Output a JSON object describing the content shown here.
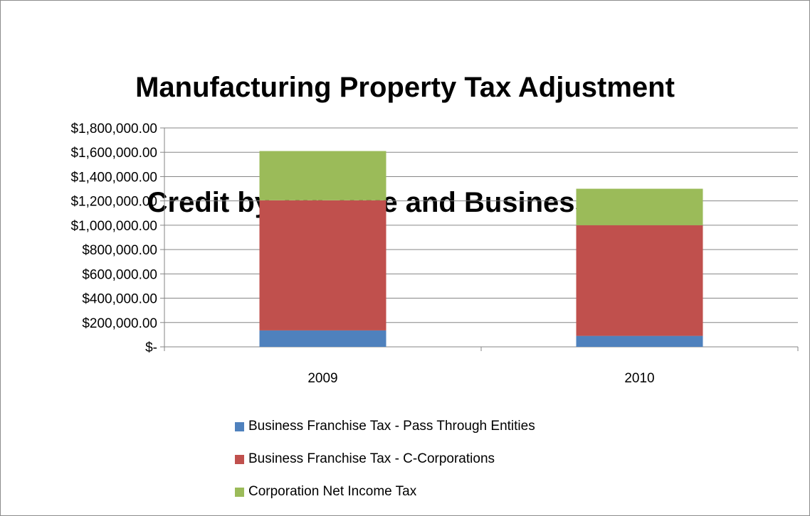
{
  "chart_data": {
    "type": "bar",
    "stacked": true,
    "title": "Manufacturing Property Tax Adjustment Credit by Tax Type and Business Type",
    "title_lines": [
      "Manufacturing Property Tax Adjustment",
      "Credit by Tax Type and Business Type"
    ],
    "categories": [
      "2009",
      "2010"
    ],
    "series": [
      {
        "name": "Business Franchise Tax - Pass Through Entities",
        "color": "#4f81bd",
        "values": [
          135000,
          90000
        ]
      },
      {
        "name": "Business Franchise Tax - C-Corporations",
        "color": "#c0504d",
        "values": [
          1070000,
          910000
        ]
      },
      {
        "name": "Corporation Net Income Tax",
        "color": "#9bbb59",
        "values": [
          405000,
          300000
        ]
      }
    ],
    "ylim": [
      0,
      1800000
    ],
    "yticks": [
      0,
      200000,
      400000,
      600000,
      800000,
      1000000,
      1200000,
      1400000,
      1600000,
      1800000
    ],
    "ytick_labels": [
      "$-",
      "$200,000.00",
      "$400,000.00",
      "$600,000.00",
      "$800,000.00",
      "$1,000,000.00",
      "$1,200,000.00",
      "$1,400,000.00",
      "$1,600,000.00",
      "$1,800,000.00"
    ],
    "grid": true,
    "legend_position": "bottom",
    "xlabel": "",
    "ylabel": ""
  }
}
